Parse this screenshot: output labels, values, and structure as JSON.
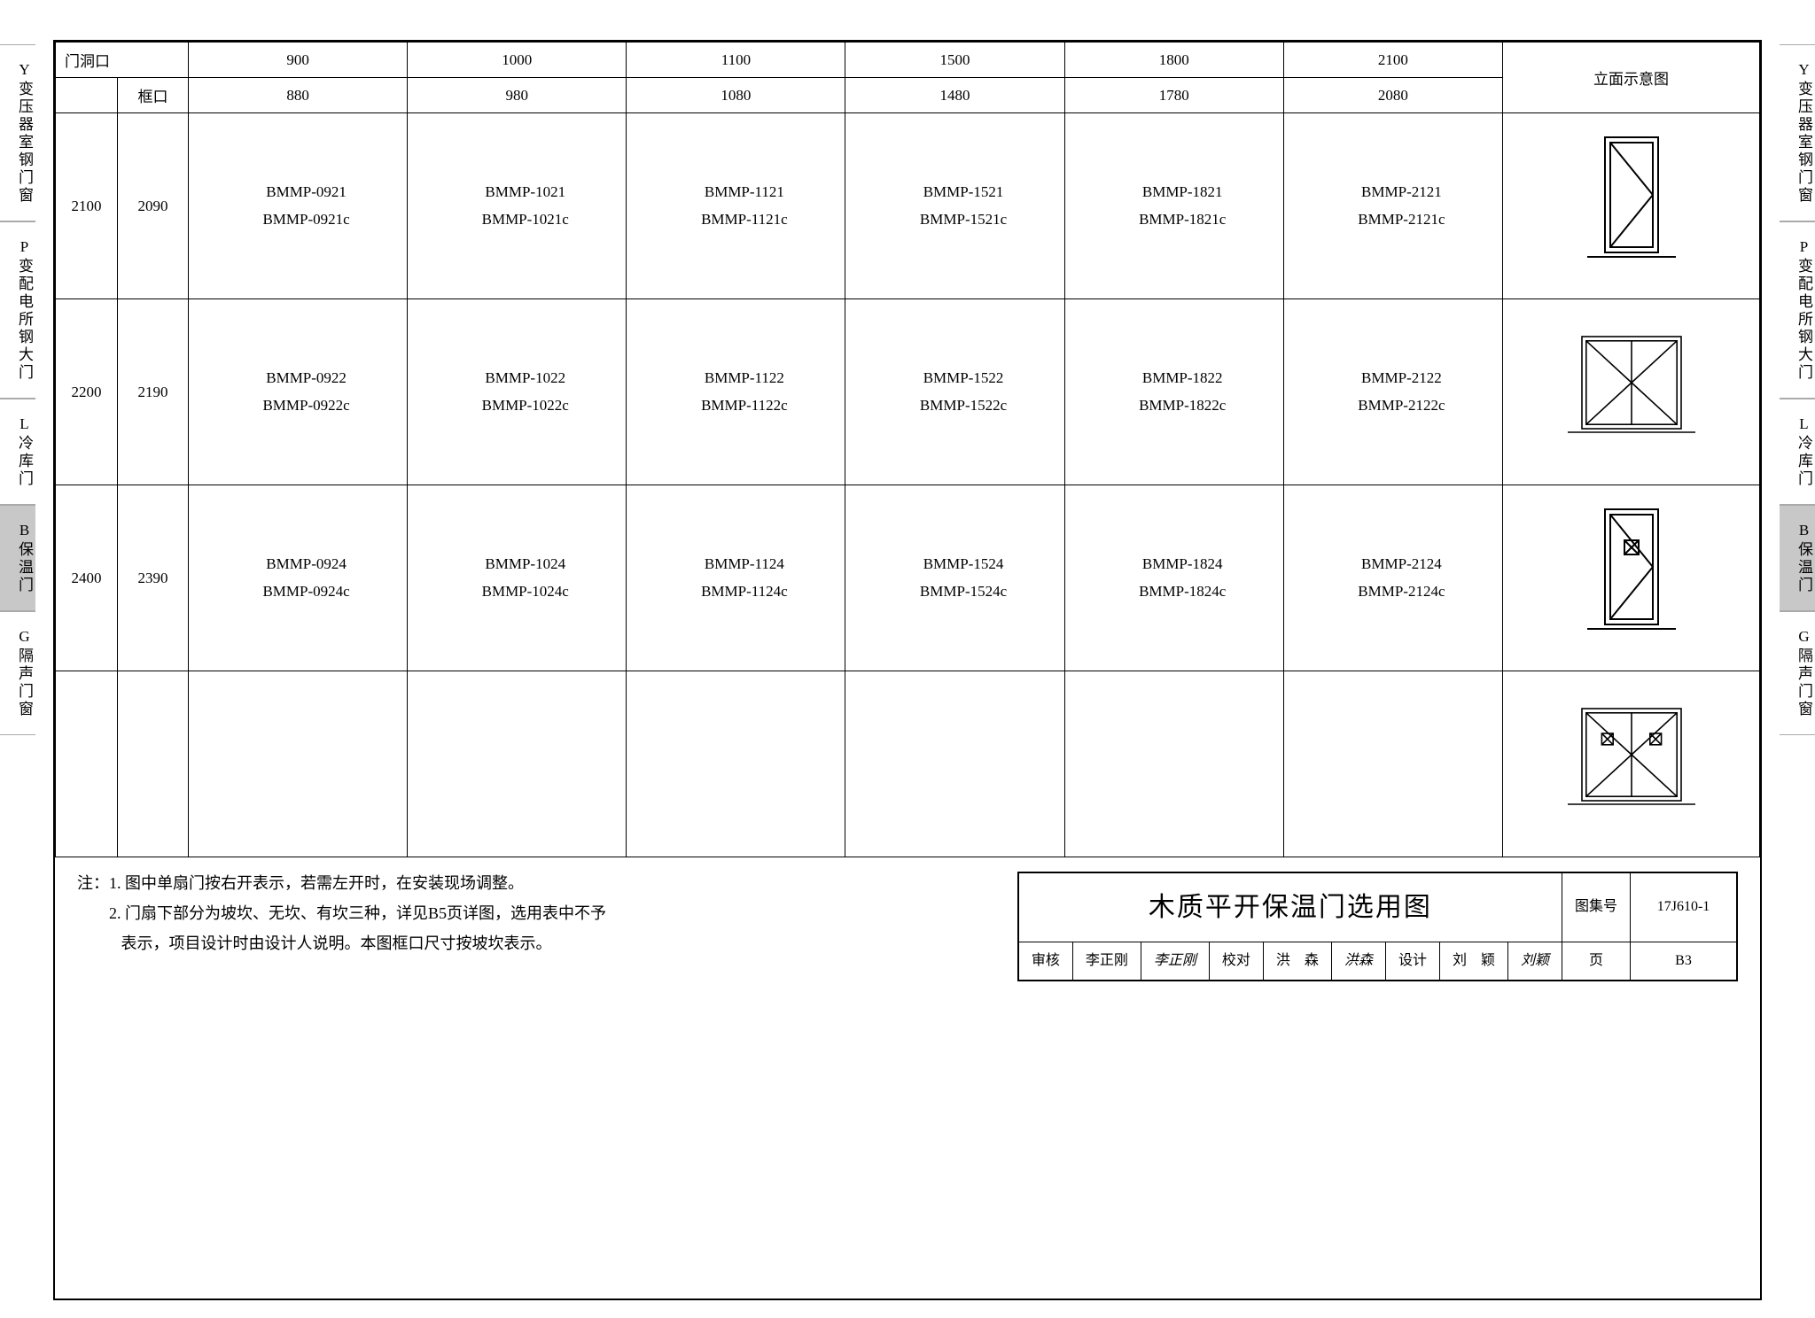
{
  "side_tabs": [
    {
      "label": "Y变压器室钢门窗",
      "active": false
    },
    {
      "label": "P变配电所钢大门",
      "active": false
    },
    {
      "label": "L冷库门",
      "active": false
    },
    {
      "label": "B保温门",
      "active": true
    },
    {
      "label": "G隔声门窗",
      "active": false
    }
  ],
  "header": {
    "opening_label": "门洞口",
    "frame_label": "框口",
    "elevation_label": "立面示意图",
    "opening_widths": [
      "900",
      "1000",
      "1100",
      "1500",
      "1800",
      "2100"
    ],
    "frame_widths": [
      "880",
      "980",
      "1080",
      "1480",
      "1780",
      "2080"
    ]
  },
  "rows": [
    {
      "opening_h": "2100",
      "frame_h": "2090",
      "cells": [
        [
          "BMMP-0921",
          "BMMP-0921c"
        ],
        [
          "BMMP-1021",
          "BMMP-1021c"
        ],
        [
          "BMMP-1121",
          "BMMP-1121c"
        ],
        [
          "BMMP-1521",
          "BMMP-1521c"
        ],
        [
          "BMMP-1821",
          "BMMP-1821c"
        ],
        [
          "BMMP-2121",
          "BMMP-2121c"
        ]
      ],
      "elev": "single"
    },
    {
      "opening_h": "2200",
      "frame_h": "2190",
      "cells": [
        [
          "BMMP-0922",
          "BMMP-0922c"
        ],
        [
          "BMMP-1022",
          "BMMP-1022c"
        ],
        [
          "BMMP-1122",
          "BMMP-1122c"
        ],
        [
          "BMMP-1522",
          "BMMP-1522c"
        ],
        [
          "BMMP-1822",
          "BMMP-1822c"
        ],
        [
          "BMMP-2122",
          "BMMP-2122c"
        ]
      ],
      "elev": "double"
    },
    {
      "opening_h": "2400",
      "frame_h": "2390",
      "cells": [
        [
          "BMMP-0924",
          "BMMP-0924c"
        ],
        [
          "BMMP-1024",
          "BMMP-1024c"
        ],
        [
          "BMMP-1124",
          "BMMP-1124c"
        ],
        [
          "BMMP-1524",
          "BMMP-1524c"
        ],
        [
          "BMMP-1824",
          "BMMP-1824c"
        ],
        [
          "BMMP-2124",
          "BMMP-2124c"
        ]
      ],
      "elev": "single-window"
    },
    {
      "opening_h": "",
      "frame_h": "",
      "cells": [
        [],
        [],
        [],
        [],
        [],
        []
      ],
      "elev": "double-window"
    }
  ],
  "notes": {
    "prefix": "注：",
    "lines": [
      "1. 图中单扇门按右开表示，若需左开时，在安装现场调整。",
      "2. 门扇下部分为坡坎、无坎、有坎三种，详见B5页详图，选用表中不予",
      "　 表示，项目设计时由设计人说明。本图框口尺寸按坡坎表示。"
    ]
  },
  "titleblock": {
    "title": "木质平开保温门选用图",
    "atlas_label": "图集号",
    "atlas_no": "17J610-1",
    "page_label": "页",
    "page_no": "B3",
    "review_label": "审核",
    "reviewer": "李正刚",
    "reviewer_sig": "李正刚",
    "check_label": "校对",
    "checker": "洪　森",
    "checker_sig": "洪森",
    "design_label": "设计",
    "designer": "刘　颖",
    "designer_sig": "刘颖"
  },
  "style": {
    "line_color": "#000000",
    "background": "#ffffff",
    "tab_active_bg": "#c8c8c8",
    "font_body_pt": 13,
    "font_title_pt": 22
  }
}
